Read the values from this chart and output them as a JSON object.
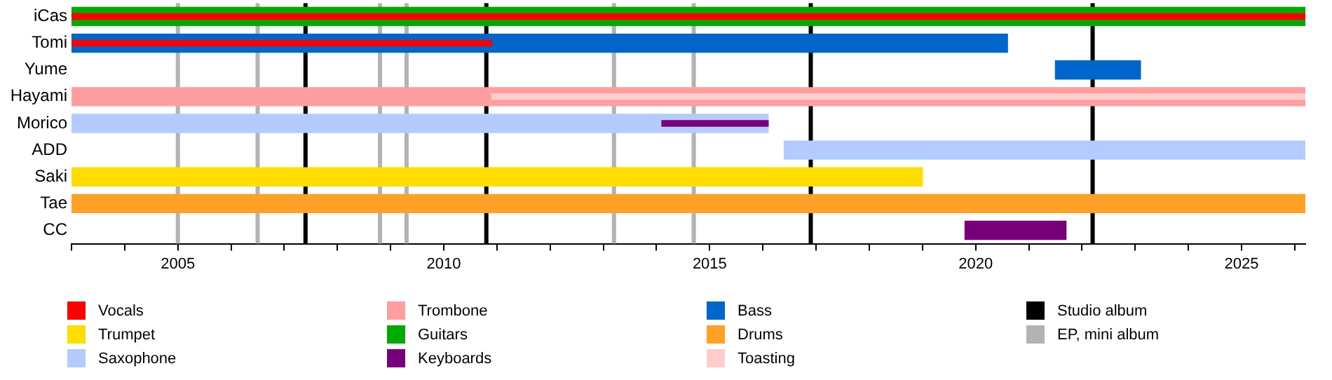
{
  "chart_data": {
    "type": "bar",
    "orientation": "horizontal",
    "categories": [
      "iCas",
      "Tomi",
      "Yume",
      "Hayami",
      "Morico",
      "ADD",
      "Saki",
      "Tae",
      "CC"
    ],
    "series": [
      {
        "name": "Vocals",
        "color": "#ff0000",
        "values": [
          23.2,
          7.9,
          null,
          null,
          null,
          null,
          null,
          null,
          null
        ],
        "base": [
          2003,
          2003,
          null,
          null,
          null,
          null,
          null,
          null,
          null
        ]
      },
      {
        "name": "Trumpet",
        "color": "#ffdd00",
        "values": [
          null,
          null,
          null,
          null,
          null,
          null,
          16.0,
          null,
          null
        ],
        "base": [
          null,
          null,
          null,
          null,
          null,
          null,
          2003,
          null,
          null
        ]
      },
      {
        "name": "Saxophone",
        "color": "#b3cbff",
        "values": [
          null,
          null,
          null,
          null,
          13.1,
          9.8,
          null,
          null,
          null
        ],
        "base": [
          null,
          null,
          null,
          null,
          2003,
          2016.4,
          null,
          null,
          null
        ]
      },
      {
        "name": "Trombone",
        "color": "#ff9e9e",
        "values": [
          null,
          null,
          null,
          23.2,
          null,
          null,
          null,
          null,
          null
        ],
        "base": [
          null,
          null,
          null,
          2003,
          null,
          null,
          null,
          null,
          null
        ]
      },
      {
        "name": "Guitars",
        "color": "#00aa00",
        "values": [
          23.2,
          null,
          null,
          null,
          null,
          null,
          null,
          null,
          null
        ],
        "base": [
          2003,
          null,
          null,
          null,
          null,
          null,
          null,
          null,
          null
        ]
      },
      {
        "name": "Keyboards",
        "color": "#780078",
        "values": [
          null,
          null,
          null,
          null,
          2.0,
          null,
          null,
          null,
          1.9
        ],
        "base": [
          null,
          null,
          null,
          null,
          2014.1,
          null,
          null,
          null,
          2019.8
        ]
      },
      {
        "name": "Bass",
        "color": "#0066cc",
        "values": [
          null,
          17.6,
          1.6,
          null,
          null,
          null,
          null,
          null,
          null
        ],
        "base": [
          null,
          2003,
          2021.5,
          null,
          null,
          null,
          null,
          null,
          null
        ]
      },
      {
        "name": "Drums",
        "color": "#ffa126",
        "values": [
          null,
          null,
          null,
          null,
          null,
          null,
          null,
          23.2,
          null
        ],
        "base": [
          null,
          null,
          null,
          null,
          null,
          null,
          null,
          2003,
          null
        ]
      },
      {
        "name": "Toasting",
        "color": "#ffcccc",
        "values": [
          null,
          null,
          null,
          15.3,
          null,
          null,
          null,
          null,
          null
        ],
        "base": [
          null,
          null,
          null,
          2010.9,
          null,
          null,
          null,
          null,
          null
        ]
      }
    ],
    "xlim": [
      2003,
      2026.2
    ],
    "xticks": [
      {
        "value": 2003,
        "label": null
      },
      {
        "value": 2004,
        "label": null
      },
      2005,
      {
        "value": 2006,
        "label": null
      },
      {
        "value": 2007,
        "label": null
      },
      {
        "value": 2008,
        "label": null
      },
      {
        "value": 2009,
        "label": null
      },
      2010,
      {
        "value": 2011,
        "label": null
      },
      {
        "value": 2012,
        "label": null
      },
      {
        "value": 2013,
        "label": null
      },
      {
        "value": 2014,
        "label": null
      },
      2015,
      {
        "value": 2016,
        "label": null
      },
      {
        "value": 2017,
        "label": null
      },
      {
        "value": 2018,
        "label": null
      },
      {
        "value": 2019,
        "label": null
      },
      2020,
      {
        "value": 2021,
        "label": null
      },
      {
        "value": 2022,
        "label": null
      },
      {
        "value": 2023,
        "label": null
      },
      {
        "value": 2024,
        "label": null
      },
      2025,
      {
        "value": 2026,
        "label": null
      }
    ],
    "ref_lines": [
      {
        "axis": "x",
        "value": 2007.4,
        "label": "Studio album",
        "color": "#000000"
      },
      {
        "axis": "x",
        "value": 2010.8,
        "label": null,
        "color": "#000000"
      },
      {
        "axis": "x",
        "value": 2016.9,
        "label": null,
        "color": "#000000"
      },
      {
        "axis": "x",
        "value": 2022.2,
        "label": null,
        "color": "#000000"
      },
      {
        "axis": "x",
        "value": 2005.0,
        "label": "EP, mini album",
        "color": "#b3b3b3"
      },
      {
        "axis": "x",
        "value": 2006.5,
        "label": null,
        "color": "#b3b3b3"
      },
      {
        "axis": "x",
        "value": 2008.8,
        "label": null,
        "color": "#b3b3b3"
      },
      {
        "axis": "x",
        "value": 2009.3,
        "label": null,
        "color": "#b3b3b3"
      },
      {
        "axis": "x",
        "value": 2013.2,
        "label": null,
        "color": "#b3b3b3"
      },
      {
        "axis": "x",
        "value": 2014.7,
        "label": null,
        "color": "#b3b3b3"
      }
    ],
    "grid": false,
    "legend": "bottom"
  }
}
